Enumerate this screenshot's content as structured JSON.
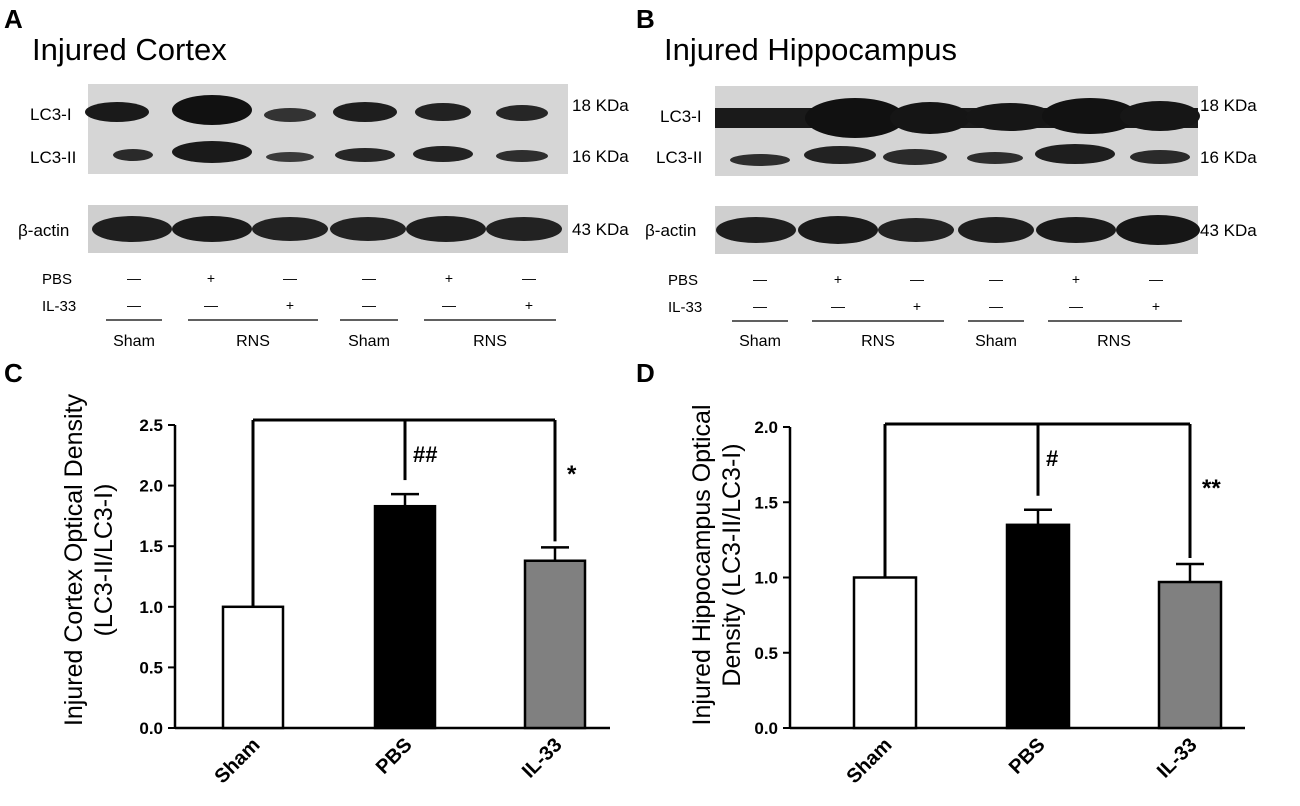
{
  "panels": {
    "A": {
      "letter": "A",
      "title": "Injured Cortex",
      "band_labels": [
        "LC3-I",
        "LC3-II",
        "β-actin"
      ],
      "size_labels": [
        "18 KDa",
        "16 KDa",
        "43 KDa"
      ],
      "row_labels": [
        "PBS",
        "IL-33"
      ],
      "pbs_marks": [
        "—",
        "+",
        "—",
        "—",
        "+",
        "—"
      ],
      "il33_marks": [
        "—",
        "—",
        "+",
        "—",
        "—",
        "+"
      ],
      "groups": [
        "Sham",
        "RNS",
        "Sham",
        "RNS"
      ]
    },
    "B": {
      "letter": "B",
      "title": "Injured Hippocampus",
      "band_labels": [
        "LC3-I",
        "LC3-II",
        "β-actin"
      ],
      "size_labels": [
        "18 KDa",
        "16 KDa",
        "43 KDa"
      ],
      "row_labels": [
        "PBS",
        "IL-33"
      ],
      "pbs_marks": [
        "—",
        "+",
        "—",
        "—",
        "+",
        "—"
      ],
      "il33_marks": [
        "—",
        "—",
        "+",
        "—",
        "—",
        "+"
      ],
      "groups": [
        "Sham",
        "RNS",
        "Sham",
        "RNS"
      ]
    },
    "C": {
      "letter": "C"
    },
    "D": {
      "letter": "D"
    }
  },
  "colors": {
    "sham": "#ffffff",
    "pbs": "#000000",
    "il33": "#808080",
    "blot_bg": "#d2d2d2"
  },
  "chart_data": [
    {
      "type": "bar",
      "panel": "C",
      "categories": [
        "Sham",
        "PBS",
        "IL-33"
      ],
      "values": [
        1.0,
        1.83,
        1.38
      ],
      "errors": [
        0,
        0.1,
        0.11
      ],
      "ylabel": "Injured Cortex Optical Density (LC3-II/LC3-I)",
      "ylabel_lines": [
        "Injured Cortex Optical Density",
        "(LC3-II/LC3-I)"
      ],
      "ylim": [
        0,
        2.5
      ],
      "yticks": [
        "0.0",
        "0.5",
        "1.0",
        "1.5",
        "2.0",
        "2.5"
      ],
      "annotations": [
        "##",
        "*"
      ]
    },
    {
      "type": "bar",
      "panel": "D",
      "categories": [
        "Sham",
        "PBS",
        "IL-33"
      ],
      "values": [
        1.0,
        1.35,
        0.97
      ],
      "errors": [
        0,
        0.1,
        0.12
      ],
      "ylabel": "Injured Hippocampus Optical Density (LC3-II/LC3-I)",
      "ylabel_lines": [
        "Injured Hippocampus Optical",
        "Density (LC3-II/LC3-I)"
      ],
      "ylim": [
        0,
        2.0
      ],
      "yticks": [
        "0.0",
        "0.5",
        "1.0",
        "1.5",
        "2.0"
      ],
      "annotations": [
        "#",
        "**"
      ]
    }
  ]
}
